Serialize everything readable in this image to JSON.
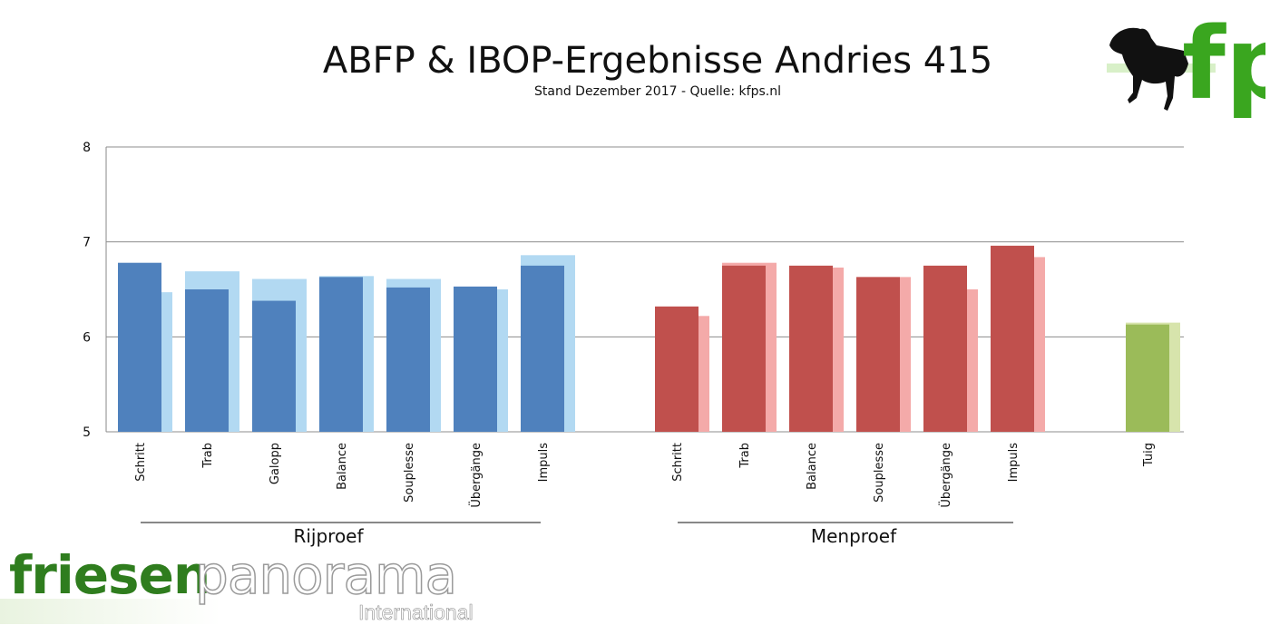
{
  "header": {
    "title": "ABFP & IBOP-Ergebnisse Andries 415",
    "subtitle": "Stand Dezember 2017 - Quelle: kfps.nl"
  },
  "logo": {
    "text": "fp"
  },
  "branding": {
    "word1": "friesen",
    "word2": "panorama",
    "sub": "International"
  },
  "colors": {
    "rijproef_main": "#4f81bd",
    "rijproef_light": "#b2d9f2",
    "menproef_main": "#c0504d",
    "menproef_light": "#f4aaa9",
    "tuig_main": "#9bbb59",
    "tuig_light": "#d7e4ac",
    "logo_green": "#3aa61f"
  },
  "chart_data": {
    "type": "bar",
    "title": "ABFP & IBOP-Ergebnisse Andries 415",
    "subtitle": "Stand Dezember 2017 - Quelle: kfps.nl",
    "ylim": [
      5,
      8
    ],
    "yticks": [
      "5",
      "6",
      "7",
      "8"
    ],
    "grid": true,
    "groups": [
      {
        "name": "Rijproef",
        "categories": [
          "Schritt",
          "Trab",
          "Galopp",
          "Balance",
          "Souplesse",
          "Übergänge",
          "Impuls"
        ],
        "series": [
          {
            "values": [
              6.78,
              6.5,
              6.38,
              6.63,
              6.52,
              6.53,
              6.75
            ]
          },
          {
            "values": [
              6.47,
              6.69,
              6.61,
              6.64,
              6.61,
              6.5,
              6.86
            ]
          }
        ]
      },
      {
        "name": "Menproef",
        "categories": [
          "Schritt",
          "Trab",
          "Balance",
          "Souplesse",
          "Übergänge",
          "Impuls"
        ],
        "series": [
          {
            "values": [
              6.32,
              6.75,
              6.75,
              6.63,
              6.75,
              6.96
            ]
          },
          {
            "values": [
              6.22,
              6.78,
              6.73,
              6.63,
              6.5,
              6.84
            ]
          }
        ]
      },
      {
        "name": "",
        "categories": [
          "Tuig"
        ],
        "series": [
          {
            "values": [
              6.13
            ]
          },
          {
            "values": [
              6.15
            ]
          }
        ]
      }
    ]
  }
}
